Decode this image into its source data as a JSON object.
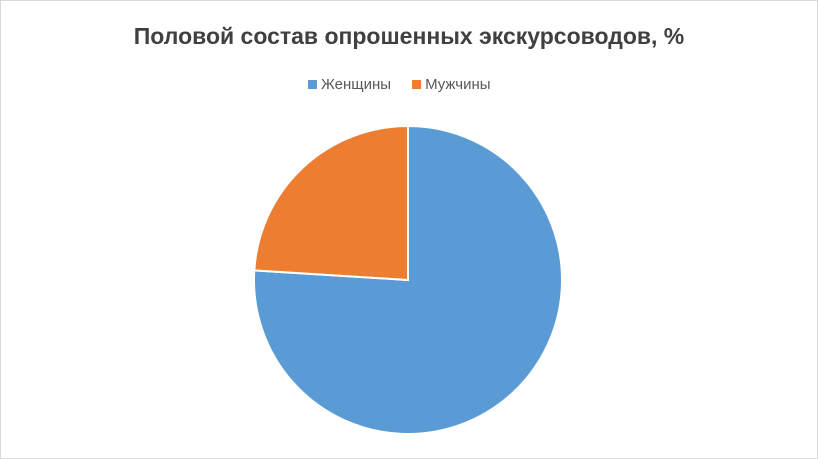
{
  "chart_data": {
    "type": "pie",
    "title": "Половой состав опрошенных экскурсоводов, %",
    "categories": [
      "Женщины",
      "Мужчины"
    ],
    "values": [
      76,
      24
    ],
    "colors": [
      "#5b9bd5",
      "#ed7d31"
    ],
    "legend": "top"
  }
}
